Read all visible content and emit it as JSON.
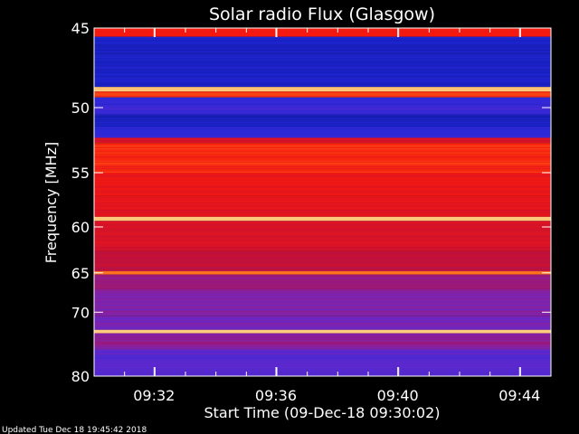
{
  "chart_data": {
    "type": "heatmap",
    "title": "Solar radio Flux (Glasgow)",
    "xlabel": "Start Time (09-Dec-18 09:30:02)",
    "ylabel": "Frequency [MHz]",
    "y_ticks": [
      "45",
      "50",
      "55",
      "60",
      "65",
      "70",
      "80"
    ],
    "x_ticks": [
      "09:32",
      "09:36",
      "09:40",
      "09:44"
    ],
    "y_tick_values": [
      45,
      50,
      55,
      60,
      65,
      70,
      80
    ],
    "x_tick_minutes": [
      1.97,
      5.97,
      9.97,
      13.97
    ],
    "time_range_minutes": [
      0,
      15
    ],
    "frequency_scale": "reciprocal",
    "frequency_range_mhz": [
      45,
      80
    ],
    "colormap": "blue-purple-red-yellow",
    "bands": [
      {
        "from": 45.0,
        "to": 45.5,
        "level": 0.72
      },
      {
        "from": 45.5,
        "to": 48.6,
        "level": 0.14
      },
      {
        "from": 48.6,
        "to": 48.9,
        "level": 0.96
      },
      {
        "from": 48.9,
        "to": 49.3,
        "level": 0.78
      },
      {
        "from": 49.3,
        "to": 49.8,
        "level": 0.22
      },
      {
        "from": 49.8,
        "to": 50.5,
        "level": 0.24
      },
      {
        "from": 50.5,
        "to": 51.4,
        "level": 0.12
      },
      {
        "from": 51.4,
        "to": 52.2,
        "level": 0.22
      },
      {
        "from": 52.2,
        "to": 52.6,
        "level": 0.62
      },
      {
        "from": 52.6,
        "to": 55.0,
        "level": 0.74
      },
      {
        "from": 55.0,
        "to": 57.0,
        "level": 0.7
      },
      {
        "from": 57.0,
        "to": 59.0,
        "level": 0.66
      },
      {
        "from": 59.0,
        "to": 59.4,
        "level": 0.97
      },
      {
        "from": 59.4,
        "to": 62.5,
        "level": 0.62
      },
      {
        "from": 62.5,
        "to": 64.8,
        "level": 0.56
      },
      {
        "from": 64.8,
        "to": 65.2,
        "level": 0.85
      },
      {
        "from": 65.2,
        "to": 67.0,
        "level": 0.46
      },
      {
        "from": 67.0,
        "to": 70.5,
        "level": 0.4
      },
      {
        "from": 70.5,
        "to": 72.5,
        "level": 0.38
      },
      {
        "from": 72.5,
        "to": 73.0,
        "level": 0.97
      },
      {
        "from": 73.0,
        "to": 75.5,
        "level": 0.42
      },
      {
        "from": 75.5,
        "to": 80.0,
        "level": 0.3
      }
    ]
  },
  "footer": {
    "updated": "Updated Tue Dec 18 19:45:42 2018"
  }
}
